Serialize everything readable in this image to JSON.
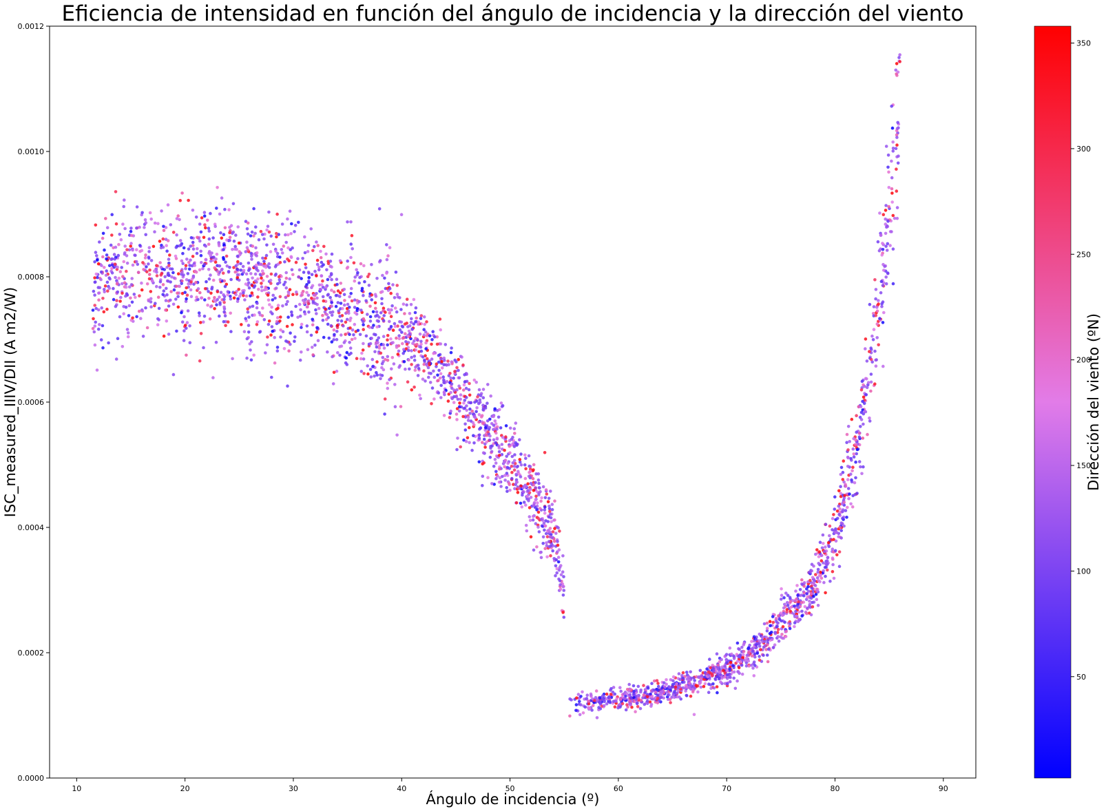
{
  "chart_data": {
    "type": "scatter",
    "title": "Eficiencia de intensidad en función del ángulo de incidencia y la dirección del viento",
    "xlabel": "Ángulo de incidencia (º)",
    "ylabel": "ISC_measured_IIIV/DII (A m2/W)",
    "xlim": [
      7.5,
      93
    ],
    "ylim": [
      0,
      0.0012
    ],
    "xticks": [
      10,
      20,
      30,
      40,
      50,
      60,
      70,
      80,
      90
    ],
    "xtick_labels": [
      "10",
      "20",
      "30",
      "40",
      "50",
      "60",
      "70",
      "80",
      "90"
    ],
    "yticks": [
      0,
      0.0002,
      0.0004,
      0.0006,
      0.0008,
      0.001,
      0.0012
    ],
    "ytick_labels": [
      "0.0000",
      "0.0002",
      "0.0004",
      "0.0006",
      "0.0008",
      "0.0010",
      "0.0012"
    ],
    "grid": false,
    "colorbar": {
      "label": "Dirección del viento (ºN)",
      "range": [
        2,
        358
      ],
      "ticks": [
        50,
        100,
        150,
        200,
        250,
        300,
        350
      ],
      "tick_labels": [
        "50",
        "100",
        "150",
        "200",
        "250",
        "300",
        "350"
      ],
      "colormap": [
        "#0000ff",
        "#e27ce8",
        "#ff0000"
      ]
    },
    "trend_upper_branch": {
      "x": [
        11.5,
        13,
        15,
        18,
        20,
        22,
        25,
        28,
        30,
        33,
        35,
        38,
        40,
        42,
        44,
        46,
        48,
        50,
        52,
        54,
        55
      ],
      "y": [
        0.00077,
        0.00081,
        0.00081,
        0.0008,
        0.0008,
        0.00081,
        0.0008,
        0.00079,
        0.00078,
        0.00076,
        0.00075,
        0.00073,
        0.00071,
        0.00068,
        0.00065,
        0.0006,
        0.00055,
        0.0005,
        0.00045,
        0.00039,
        0.00029
      ],
      "spread": 4e-05
    },
    "trend_lower_branch": {
      "x": [
        55.5,
        58,
        60,
        62,
        64,
        66,
        68,
        70,
        72,
        74,
        76,
        78,
        80,
        81,
        82,
        83,
        84,
        85,
        86
      ],
      "y": [
        0.00012,
        0.000122,
        0.000126,
        0.000131,
        0.000138,
        0.000147,
        0.000158,
        0.000172,
        0.000195,
        0.000225,
        0.000268,
        0.00031,
        0.00038,
        0.00045,
        0.00053,
        0.00063,
        0.00075,
        0.00088,
        0.00115
      ],
      "spread": 2e-05
    },
    "n_points": 3500
  }
}
